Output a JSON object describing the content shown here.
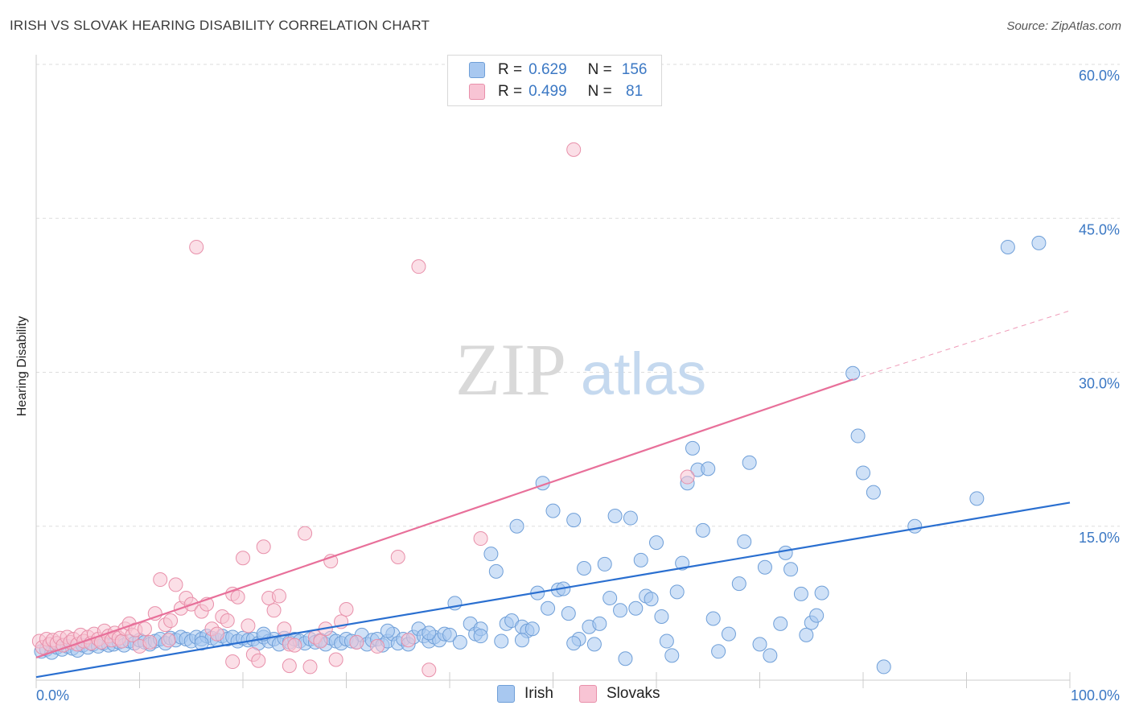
{
  "title": "IRISH VS SLOVAK HEARING DISABILITY CORRELATION CHART",
  "source": "Source: ZipAtlas.com",
  "watermark": {
    "zip": "ZIP",
    "atlas": "atlas"
  },
  "legend": {
    "rows": [
      {
        "r_label": "R =",
        "r_value": "0.629",
        "n_label": "N =",
        "n_value": "156",
        "color": "#a8c8f0",
        "border": "#6f9fd8"
      },
      {
        "r_label": "R =",
        "r_value": "0.499",
        "n_label": "N =",
        "n_value": " 81",
        "color": "#f8c4d4",
        "border": "#e890aa"
      }
    ]
  },
  "bottom_legend": [
    {
      "label": "Irish",
      "color": "#a8c8f0",
      "border": "#6f9fd8"
    },
    {
      "label": "Slovaks",
      "color": "#f8c4d4",
      "border": "#e890aa"
    }
  ],
  "chart_data": {
    "type": "scatter",
    "title": "IRISH VS SLOVAK HEARING DISABILITY CORRELATION CHART",
    "xlabel": "",
    "ylabel": "Hearing Disability",
    "xlim": [
      0,
      100
    ],
    "ylim": [
      0,
      60
    ],
    "x_tick_labels": [
      "0.0%",
      "100.0%"
    ],
    "y_ticks": [
      15,
      30,
      45,
      60
    ],
    "y_tick_labels": [
      "15.0%",
      "30.0%",
      "45.0%",
      "60.0%"
    ],
    "grid": true,
    "series": [
      {
        "name": "Irish",
        "color": "#a8c8f0",
        "stroke": "#6f9fd8",
        "trend": {
          "x": [
            0,
            100
          ],
          "y": [
            0.3,
            17.3
          ],
          "color": "#2a6fd0"
        },
        "points": [
          [
            0.5,
            2.8
          ],
          [
            1,
            3.0
          ],
          [
            1.5,
            2.7
          ],
          [
            2,
            3.2
          ],
          [
            2.5,
            3.0
          ],
          [
            3,
            3.3
          ],
          [
            3.5,
            3.1
          ],
          [
            4,
            2.9
          ],
          [
            4.5,
            3.4
          ],
          [
            5,
            3.2
          ],
          [
            5.5,
            3.5
          ],
          [
            6,
            3.3
          ],
          [
            6.5,
            3.6
          ],
          [
            7,
            3.4
          ],
          [
            7.5,
            3.5
          ],
          [
            8,
            3.7
          ],
          [
            8.5,
            3.4
          ],
          [
            9,
            3.8
          ],
          [
            9.5,
            3.6
          ],
          [
            10,
            3.9
          ],
          [
            10.5,
            3.7
          ],
          [
            11,
            3.5
          ],
          [
            11.5,
            3.8
          ],
          [
            12,
            4.0
          ],
          [
            12.5,
            3.6
          ],
          [
            13,
            4.1
          ],
          [
            13.5,
            3.9
          ],
          [
            14,
            4.2
          ],
          [
            14.5,
            4.0
          ],
          [
            15,
            3.8
          ],
          [
            15.5,
            4.2
          ],
          [
            16,
            4.0
          ],
          [
            16.5,
            4.3
          ],
          [
            17,
            4.1
          ],
          [
            17.5,
            3.9
          ],
          [
            18,
            4.3
          ],
          [
            18.5,
            4.0
          ],
          [
            19,
            4.2
          ],
          [
            19.5,
            3.8
          ],
          [
            20,
            4.1
          ],
          [
            20.5,
            3.9
          ],
          [
            21,
            4.0
          ],
          [
            21.5,
            3.6
          ],
          [
            22,
            4.2
          ],
          [
            22.5,
            3.8
          ],
          [
            23,
            4.0
          ],
          [
            23.5,
            3.5
          ],
          [
            24,
            4.1
          ],
          [
            24.5,
            3.7
          ],
          [
            25,
            4.0
          ],
          [
            25.5,
            3.8
          ],
          [
            26,
            3.6
          ],
          [
            26.5,
            4.0
          ],
          [
            27,
            3.7
          ],
          [
            27.5,
            3.9
          ],
          [
            28,
            3.5
          ],
          [
            28.5,
            4.1
          ],
          [
            29,
            3.8
          ],
          [
            29.5,
            3.6
          ],
          [
            30,
            4.0
          ],
          [
            31,
            3.7
          ],
          [
            31.5,
            4.4
          ],
          [
            32,
            3.5
          ],
          [
            32.5,
            3.9
          ],
          [
            33,
            4.0
          ],
          [
            33.5,
            3.4
          ],
          [
            34,
            3.8
          ],
          [
            34.5,
            4.5
          ],
          [
            35,
            3.6
          ],
          [
            35.5,
            4.0
          ],
          [
            36,
            3.5
          ],
          [
            36.5,
            4.2
          ],
          [
            37,
            5.0
          ],
          [
            37.5,
            4.3
          ],
          [
            38,
            3.8
          ],
          [
            38.5,
            4.2
          ],
          [
            39,
            3.9
          ],
          [
            39.5,
            4.5
          ],
          [
            40,
            4.4
          ],
          [
            40.5,
            7.5
          ],
          [
            41,
            3.7
          ],
          [
            42,
            5.5
          ],
          [
            42.5,
            4.5
          ],
          [
            43,
            5.0
          ],
          [
            44,
            12.3
          ],
          [
            44.5,
            10.6
          ],
          [
            45,
            3.8
          ],
          [
            45.5,
            5.5
          ],
          [
            46,
            5.8
          ],
          [
            46.5,
            15.0
          ],
          [
            47,
            5.2
          ],
          [
            47.5,
            4.8
          ],
          [
            48,
            5.0
          ],
          [
            48.5,
            8.5
          ],
          [
            49,
            19.2
          ],
          [
            49.5,
            7.0
          ],
          [
            50,
            16.5
          ],
          [
            50.5,
            8.8
          ],
          [
            51,
            8.9
          ],
          [
            51.5,
            6.5
          ],
          [
            52,
            15.6
          ],
          [
            52.5,
            4.0
          ],
          [
            53,
            10.9
          ],
          [
            53.5,
            5.2
          ],
          [
            54,
            3.5
          ],
          [
            54.5,
            5.5
          ],
          [
            55,
            11.3
          ],
          [
            55.5,
            8.0
          ],
          [
            56,
            16.0
          ],
          [
            56.5,
            6.8
          ],
          [
            57,
            2.1
          ],
          [
            57.5,
            15.8
          ],
          [
            58,
            7.0
          ],
          [
            58.5,
            11.7
          ],
          [
            59,
            8.2
          ],
          [
            59.5,
            7.9
          ],
          [
            60,
            13.4
          ],
          [
            60.5,
            6.2
          ],
          [
            61,
            3.8
          ],
          [
            61.5,
            2.4
          ],
          [
            62,
            8.6
          ],
          [
            62.5,
            11.4
          ],
          [
            63,
            19.2
          ],
          [
            63.5,
            22.6
          ],
          [
            64,
            20.5
          ],
          [
            64.5,
            14.6
          ],
          [
            65,
            20.6
          ],
          [
            65.5,
            6.0
          ],
          [
            66,
            2.8
          ],
          [
            67,
            4.5
          ],
          [
            68,
            9.4
          ],
          [
            68.5,
            13.5
          ],
          [
            69,
            21.2
          ],
          [
            70,
            3.5
          ],
          [
            70.5,
            11.0
          ],
          [
            71,
            2.4
          ],
          [
            72,
            5.5
          ],
          [
            72.5,
            12.4
          ],
          [
            73,
            10.8
          ],
          [
            74,
            8.4
          ],
          [
            74.5,
            4.4
          ],
          [
            75,
            5.6
          ],
          [
            75.5,
            6.3
          ],
          [
            76,
            8.5
          ],
          [
            79,
            29.9
          ],
          [
            79.5,
            23.8
          ],
          [
            80,
            20.2
          ],
          [
            81,
            18.3
          ],
          [
            82,
            1.3
          ],
          [
            85,
            15.0
          ],
          [
            91,
            17.7
          ],
          [
            94,
            42.2
          ],
          [
            97,
            42.6
          ],
          [
            16,
            3.6
          ],
          [
            22,
            4.5
          ],
          [
            30.5,
            3.8
          ],
          [
            34,
            4.8
          ],
          [
            38,
            4.6
          ],
          [
            43,
            4.3
          ],
          [
            47,
            3.9
          ],
          [
            52,
            3.6
          ]
        ]
      },
      {
        "name": "Slovaks",
        "color": "#f8c4d4",
        "stroke": "#e890aa",
        "trend": {
          "x": [
            0,
            79
          ],
          "y": [
            2.2,
            29.3
          ],
          "dashed_to": [
            100,
            36.0
          ],
          "color": "#e8709a"
        },
        "points": [
          [
            0.3,
            3.8
          ],
          [
            0.6,
            3.2
          ],
          [
            1,
            4.0
          ],
          [
            1.3,
            3.5
          ],
          [
            1.6,
            3.9
          ],
          [
            2,
            3.6
          ],
          [
            2.3,
            4.1
          ],
          [
            2.6,
            3.4
          ],
          [
            3,
            4.2
          ],
          [
            3.3,
            3.7
          ],
          [
            3.6,
            4.0
          ],
          [
            4,
            3.5
          ],
          [
            4.3,
            4.4
          ],
          [
            4.6,
            3.8
          ],
          [
            5,
            4.2
          ],
          [
            5.3,
            3.6
          ],
          [
            5.6,
            4.5
          ],
          [
            6,
            4.0
          ],
          [
            6.3,
            3.7
          ],
          [
            6.6,
            4.8
          ],
          [
            7,
            4.3
          ],
          [
            7.3,
            3.9
          ],
          [
            7.6,
            4.6
          ],
          [
            8,
            4.1
          ],
          [
            8.3,
            3.8
          ],
          [
            8.6,
            5.0
          ],
          [
            9,
            5.5
          ],
          [
            9.3,
            4.4
          ],
          [
            9.6,
            4.9
          ],
          [
            10,
            3.3
          ],
          [
            10.5,
            5.0
          ],
          [
            11,
            3.7
          ],
          [
            11.5,
            6.5
          ],
          [
            12,
            9.8
          ],
          [
            12.5,
            5.4
          ],
          [
            13,
            5.8
          ],
          [
            13.5,
            9.3
          ],
          [
            14,
            7.0
          ],
          [
            14.5,
            8.0
          ],
          [
            15,
            7.4
          ],
          [
            15.5,
            42.2
          ],
          [
            16,
            6.7
          ],
          [
            16.5,
            7.4
          ],
          [
            17,
            5.0
          ],
          [
            17.5,
            4.5
          ],
          [
            18,
            6.2
          ],
          [
            18.5,
            5.8
          ],
          [
            19,
            8.4
          ],
          [
            19.5,
            8.1
          ],
          [
            20,
            11.9
          ],
          [
            20.5,
            5.3
          ],
          [
            21,
            2.5
          ],
          [
            21.5,
            1.9
          ],
          [
            22,
            13.0
          ],
          [
            22.5,
            8.0
          ],
          [
            23,
            6.8
          ],
          [
            23.5,
            8.2
          ],
          [
            24,
            5.0
          ],
          [
            24.5,
            3.5
          ],
          [
            25,
            3.4
          ],
          [
            26,
            14.3
          ],
          [
            27,
            4.2
          ],
          [
            27.5,
            3.8
          ],
          [
            28,
            5.0
          ],
          [
            28.5,
            11.6
          ],
          [
            29,
            2.0
          ],
          [
            29.5,
            5.7
          ],
          [
            30,
            6.9
          ],
          [
            35,
            12.0
          ],
          [
            37,
            40.3
          ],
          [
            38,
            1.0
          ],
          [
            43,
            13.8
          ],
          [
            52,
            51.7
          ],
          [
            63,
            19.8
          ],
          [
            24.5,
            1.4
          ],
          [
            26.5,
            1.3
          ],
          [
            19,
            1.8
          ],
          [
            31,
            3.7
          ],
          [
            33,
            3.3
          ],
          [
            36,
            3.9
          ],
          [
            12.8,
            3.9
          ]
        ]
      }
    ]
  }
}
